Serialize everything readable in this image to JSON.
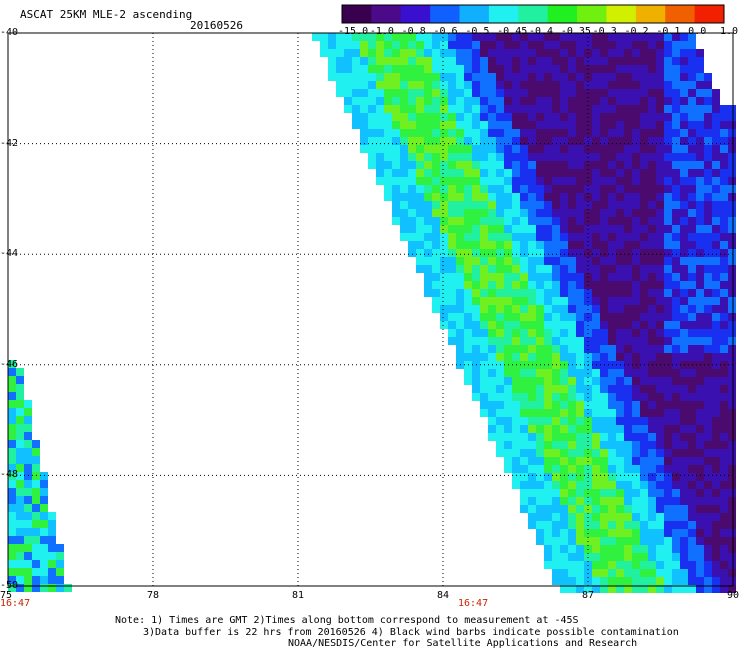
{
  "header": {
    "title": "ASCAT 25KM MLE-2 ascending",
    "date": "20160526"
  },
  "colorbar": {
    "labels": [
      "-15.0",
      "-1.0",
      "-0.8",
      "-0.6",
      "-0.5",
      "-0.45",
      "-0.4",
      "-0.35",
      "-0.3",
      "-0.2",
      "-0.1",
      "0.0",
      "1.0"
    ],
    "colors": [
      "#3a0050",
      "#4a0a8a",
      "#3a10d0",
      "#1060ff",
      "#10b0ff",
      "#20f0f0",
      "#20f0a0",
      "#20f020",
      "#70f010",
      "#d0f000",
      "#f0b000",
      "#f06000",
      "#f02000"
    ]
  },
  "map": {
    "lon_ticks": [
      "75",
      "78",
      "81",
      "84",
      "87",
      "90"
    ],
    "lat_ticks": [
      "-40",
      "-42",
      "-44",
      "-46",
      "-48",
      "-50"
    ],
    "pass_times": [
      "16:47",
      "16:47"
    ]
  },
  "notes": {
    "line1": "Note: 1) Times are GMT 2)Times along bottom correspond to measurement at -45S",
    "line2": "3)Data buffer is 22 hrs from 20160526 4) Black wind barbs indicate possible contamination",
    "line3": "NOAA/NESDIS/Center for Satellite Applications and Research"
  }
}
